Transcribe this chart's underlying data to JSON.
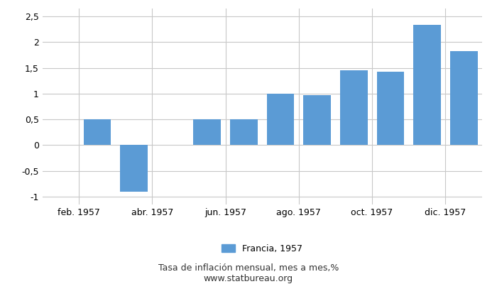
{
  "month_indices": [
    1,
    2,
    3,
    4,
    5,
    6,
    7,
    8,
    9,
    10,
    11,
    12
  ],
  "values": [
    0.0,
    0.5,
    -0.9,
    0.0,
    0.5,
    0.5,
    1.0,
    0.97,
    1.45,
    1.43,
    2.33,
    1.83
  ],
  "bar_color": "#5b9bd5",
  "yticks": [
    -1,
    -0.5,
    0,
    0.5,
    1,
    1.5,
    2,
    2.5
  ],
  "ytick_labels": [
    "-1",
    "-0,5",
    "0",
    "0,5",
    "1",
    "1,5",
    "2",
    "2,5"
  ],
  "ylim": [
    -1.15,
    2.65
  ],
  "xtick_positions": [
    1.5,
    3.5,
    5.5,
    7.5,
    9.5,
    11.5
  ],
  "xtick_labels": [
    "feb. 1957",
    "abr. 1957",
    "jun. 1957",
    "ago. 1957",
    "oct. 1957",
    "dic. 1957"
  ],
  "legend_label": "Francia, 1957",
  "xlabel_bottom": "Tasa de inflación mensual, mes a mes,%",
  "xlabel_bottom2": "www.statbureau.org",
  "background_color": "#ffffff",
  "grid_color": "#c8c8c8",
  "bar_width": 0.75,
  "tick_fontsize": 9,
  "legend_fontsize": 9,
  "caption_fontsize": 9
}
